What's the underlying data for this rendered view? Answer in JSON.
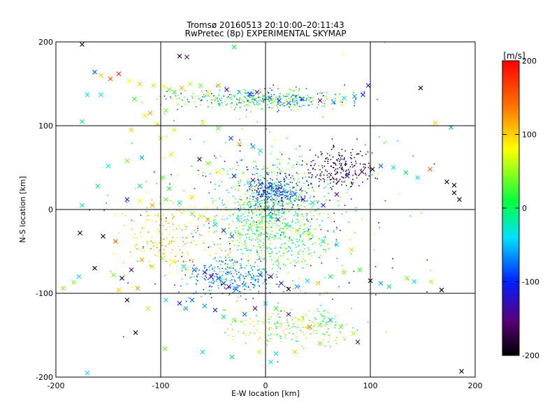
{
  "chart_data": {
    "type": "scatter",
    "title": "Tromsø 20160513 20:10:00–20:11:43",
    "subtitle": "RwPretec (8p) EXPERIMENTAL SKYMAP",
    "xlabel": "E-W location [km]",
    "ylabel": "N-S location [km]",
    "xlim": [
      -200,
      200
    ],
    "ylim": [
      -200,
      200
    ],
    "xticks": [
      "-200",
      "-100",
      "0",
      "100",
      "200"
    ],
    "yticks": [
      "-200",
      "-100",
      "0",
      "100",
      "200"
    ],
    "grid": true,
    "marker_styles": [
      "cross",
      "dot"
    ],
    "colorbar": {
      "label": "[m/s]",
      "range": [
        -200,
        200
      ],
      "ticks": [
        "200",
        "100",
        "0",
        "-100",
        "-200"
      ],
      "colors": [
        "#000000",
        "#5a007a",
        "#0020ff",
        "#00e0ff",
        "#00ff40",
        "#ffff00",
        "#ff7000",
        "#ff0000"
      ]
    },
    "points": [
      [
        -175,
        197,
        -200,
        "x"
      ],
      [
        -82,
        183,
        -200,
        "x"
      ],
      [
        -75,
        182,
        -150,
        "x"
      ],
      [
        -30,
        194,
        0,
        "x"
      ],
      [
        -163,
        164,
        -80,
        "x"
      ],
      [
        -157,
        160,
        100,
        "x"
      ],
      [
        -148,
        156,
        150,
        "x"
      ],
      [
        -140,
        162,
        180,
        "x"
      ],
      [
        -130,
        153,
        80,
        "x"
      ],
      [
        -120,
        150,
        100,
        "x"
      ],
      [
        -107,
        148,
        60,
        "x"
      ],
      [
        -97,
        147,
        80,
        "x"
      ],
      [
        -92,
        143,
        40,
        "x"
      ],
      [
        -87,
        140,
        20,
        "x"
      ],
      [
        -80,
        145,
        110,
        "x"
      ],
      [
        -72,
        150,
        60,
        "x"
      ],
      [
        -62,
        148,
        40,
        "x"
      ],
      [
        -55,
        140,
        90,
        "x"
      ],
      [
        -45,
        148,
        120,
        "x"
      ],
      [
        -37,
        143,
        -150,
        "x"
      ],
      [
        -25,
        140,
        -40,
        "x"
      ],
      [
        -15,
        138,
        -100,
        "x"
      ],
      [
        -8,
        140,
        -120,
        "x"
      ],
      [
        4,
        133,
        -130,
        "x"
      ],
      [
        13,
        130,
        -100,
        "x"
      ],
      [
        22,
        127,
        -90,
        "x"
      ],
      [
        35,
        132,
        -120,
        "x"
      ],
      [
        52,
        130,
        -150,
        "x"
      ],
      [
        65,
        128,
        -60,
        "x"
      ],
      [
        75,
        133,
        -40,
        "x"
      ],
      [
        85,
        135,
        -60,
        "x"
      ],
      [
        93,
        137,
        -110,
        "x"
      ],
      [
        98,
        148,
        -120,
        "x"
      ],
      [
        -157,
        137,
        -40,
        "x"
      ],
      [
        -125,
        132,
        20,
        "x"
      ],
      [
        -115,
        112,
        90,
        "x"
      ],
      [
        -95,
        118,
        40,
        "x"
      ],
      [
        -87,
        95,
        60,
        "x"
      ],
      [
        -60,
        103,
        90,
        "x"
      ],
      [
        -45,
        97,
        30,
        "x"
      ],
      [
        -33,
        85,
        -90,
        "x"
      ],
      [
        -25,
        78,
        120,
        "x"
      ],
      [
        -12,
        75,
        -60,
        "x"
      ],
      [
        -5,
        70,
        -30,
        "x"
      ],
      [
        -63,
        60,
        -180,
        "x"
      ],
      [
        -55,
        55,
        40,
        "x"
      ],
      [
        -45,
        45,
        80,
        "x"
      ],
      [
        -30,
        40,
        -100,
        "x"
      ],
      [
        -12,
        35,
        -140,
        "x"
      ],
      [
        -5,
        30,
        -110,
        "x"
      ],
      [
        5,
        28,
        -90,
        "x"
      ],
      [
        12,
        24,
        -120,
        "x"
      ],
      [
        18,
        22,
        -60,
        "x"
      ],
      [
        28,
        18,
        -80,
        "x"
      ],
      [
        36,
        12,
        -120,
        "x"
      ],
      [
        45,
        8,
        -20,
        "x"
      ],
      [
        55,
        5,
        -100,
        "x"
      ],
      [
        68,
        18,
        -150,
        "x"
      ],
      [
        78,
        40,
        -120,
        "x"
      ],
      [
        92,
        45,
        -170,
        "x"
      ],
      [
        102,
        48,
        -200,
        "x"
      ],
      [
        110,
        52,
        -80,
        "x"
      ],
      [
        122,
        50,
        -40,
        "x"
      ],
      [
        134,
        44,
        0,
        "x"
      ],
      [
        145,
        38,
        -40,
        "x"
      ],
      [
        157,
        48,
        150,
        "x"
      ],
      [
        173,
        33,
        -200,
        "x"
      ],
      [
        180,
        29,
        -190,
        "x"
      ],
      [
        162,
        103,
        100,
        "x"
      ],
      [
        177,
        98,
        -60,
        "x"
      ],
      [
        -150,
        52,
        -40,
        "x"
      ],
      [
        -132,
        58,
        40,
        "x"
      ],
      [
        -118,
        62,
        -60,
        "x"
      ],
      [
        -98,
        38,
        30,
        "x"
      ],
      [
        -92,
        25,
        20,
        "x"
      ],
      [
        -70,
        15,
        90,
        "x"
      ],
      [
        -120,
        28,
        -20,
        "x"
      ],
      [
        -160,
        28,
        0,
        "x"
      ],
      [
        -175,
        5,
        -20,
        "x"
      ],
      [
        -132,
        12,
        -100,
        "x"
      ],
      [
        -120,
        10,
        80,
        "x"
      ],
      [
        -108,
        5,
        120,
        "x"
      ],
      [
        -95,
        12,
        30,
        "x"
      ],
      [
        -82,
        8,
        -20,
        "x"
      ],
      [
        -70,
        -5,
        40,
        "x"
      ],
      [
        -62,
        -8,
        90,
        "x"
      ],
      [
        -55,
        -12,
        120,
        "x"
      ],
      [
        -48,
        -18,
        -40,
        "x"
      ],
      [
        -40,
        -25,
        -120,
        "x"
      ],
      [
        -32,
        -32,
        -80,
        "x"
      ],
      [
        -25,
        -30,
        60,
        "x"
      ],
      [
        -15,
        -22,
        20,
        "x"
      ],
      [
        -5,
        -15,
        40,
        "x"
      ],
      [
        5,
        -8,
        -40,
        "x"
      ],
      [
        12,
        -12,
        -100,
        "x"
      ],
      [
        20,
        -18,
        0,
        "x"
      ],
      [
        30,
        -25,
        60,
        "x"
      ],
      [
        42,
        -30,
        80,
        "x"
      ],
      [
        55,
        -38,
        -20,
        "x"
      ],
      [
        68,
        -42,
        -40,
        "x"
      ],
      [
        82,
        -48,
        100,
        "x"
      ],
      [
        -177,
        -28,
        -200,
        "x"
      ],
      [
        -155,
        -32,
        -200,
        "x"
      ],
      [
        -143,
        -38,
        150,
        "x"
      ],
      [
        -163,
        -70,
        -200,
        "x"
      ],
      [
        -145,
        -78,
        40,
        "x"
      ],
      [
        -137,
        -82,
        -200,
        "x"
      ],
      [
        -128,
        -72,
        -150,
        "x"
      ],
      [
        -118,
        -60,
        120,
        "x"
      ],
      [
        -108,
        -68,
        100,
        "x"
      ],
      [
        -98,
        -58,
        60,
        "x"
      ],
      [
        -88,
        -62,
        80,
        "x"
      ],
      [
        -78,
        -68,
        -40,
        "x"
      ],
      [
        -68,
        -72,
        -100,
        "x"
      ],
      [
        -58,
        -75,
        -120,
        "x"
      ],
      [
        -52,
        -80,
        -130,
        "x"
      ],
      [
        -45,
        -82,
        -120,
        "x"
      ],
      [
        -40,
        -88,
        -110,
        "x"
      ],
      [
        -35,
        -92,
        -140,
        "x"
      ],
      [
        -28,
        -95,
        -90,
        "x"
      ],
      [
        -20,
        -90,
        -60,
        "x"
      ],
      [
        -12,
        -82,
        -40,
        "x"
      ],
      [
        -5,
        -78,
        -100,
        "x"
      ],
      [
        5,
        -80,
        -150,
        "x"
      ],
      [
        15,
        -88,
        -120,
        "x"
      ],
      [
        22,
        -95,
        -200,
        "x"
      ],
      [
        30,
        -92,
        -60,
        "x"
      ],
      [
        40,
        -85,
        -40,
        "x"
      ],
      [
        50,
        -88,
        100,
        "x"
      ],
      [
        62,
        -80,
        0,
        "x"
      ],
      [
        75,
        -75,
        40,
        "x"
      ],
      [
        90,
        -72,
        20,
        "x"
      ],
      [
        100,
        -85,
        -200,
        "x"
      ],
      [
        110,
        -88,
        -60,
        "x"
      ],
      [
        118,
        -92,
        0,
        "x"
      ],
      [
        135,
        -82,
        40,
        "x"
      ],
      [
        142,
        -86,
        -40,
        "x"
      ],
      [
        168,
        -96,
        -200,
        "x"
      ],
      [
        -132,
        -108,
        -200,
        "x"
      ],
      [
        -112,
        -118,
        60,
        "x"
      ],
      [
        -95,
        -108,
        -40,
        "x"
      ],
      [
        -82,
        -112,
        -100,
        "x"
      ],
      [
        -70,
        -108,
        -80,
        "x"
      ],
      [
        -58,
        -115,
        -60,
        "x"
      ],
      [
        -48,
        -120,
        -120,
        "x"
      ],
      [
        -40,
        -128,
        -20,
        "x"
      ],
      [
        -30,
        -132,
        40,
        "x"
      ],
      [
        -20,
        -125,
        -80,
        "x"
      ],
      [
        -10,
        -118,
        -140,
        "x"
      ],
      [
        0,
        -112,
        -40,
        "x"
      ],
      [
        10,
        -118,
        20,
        "x"
      ],
      [
        22,
        -125,
        -120,
        "x"
      ],
      [
        35,
        -132,
        80,
        "x"
      ],
      [
        42,
        -140,
        150,
        "x"
      ],
      [
        52,
        -138,
        40,
        "x"
      ],
      [
        62,
        -132,
        -60,
        "x"
      ],
      [
        72,
        -140,
        40,
        "x"
      ],
      [
        84,
        -148,
        60,
        "x"
      ],
      [
        88,
        -158,
        -140,
        "x"
      ],
      [
        -124,
        -147,
        -200,
        "x"
      ],
      [
        -96,
        -166,
        40,
        "x"
      ],
      [
        -60,
        -170,
        -40,
        "x"
      ],
      [
        -32,
        -176,
        0,
        "x"
      ],
      [
        -6,
        -170,
        60,
        "x"
      ],
      [
        10,
        -172,
        -40,
        "x"
      ],
      [
        28,
        -170,
        100,
        "x"
      ],
      [
        52,
        -160,
        40,
        "x"
      ],
      [
        -170,
        -195,
        -40,
        "x"
      ],
      [
        5,
        -182,
        -40,
        "x"
      ],
      [
        -170,
        137,
        -40,
        "x"
      ],
      [
        -178,
        -80,
        -40,
        "x"
      ],
      [
        -183,
        -87,
        40,
        "x"
      ],
      [
        -193,
        -94,
        40,
        "x"
      ],
      [
        187,
        -193,
        -200,
        "x"
      ],
      [
        180,
        20,
        -200,
        "x"
      ],
      [
        185,
        12,
        -200,
        "x"
      ],
      [
        -128,
        95,
        100,
        "x"
      ],
      [
        -110,
        115,
        120,
        "x"
      ],
      [
        -104,
        102,
        80,
        "x"
      ],
      [
        -100,
        85,
        60,
        "x"
      ],
      [
        -90,
        66,
        90,
        "x"
      ],
      [
        -140,
        -96,
        100,
        "x"
      ],
      [
        -122,
        -94,
        120,
        "x"
      ],
      [
        -76,
        -118,
        -60,
        "x"
      ],
      [
        148,
        145,
        -200,
        "x"
      ],
      [
        158,
        -86,
        60,
        "x"
      ],
      [
        -175,
        105,
        -20,
        "x"
      ]
    ]
  }
}
